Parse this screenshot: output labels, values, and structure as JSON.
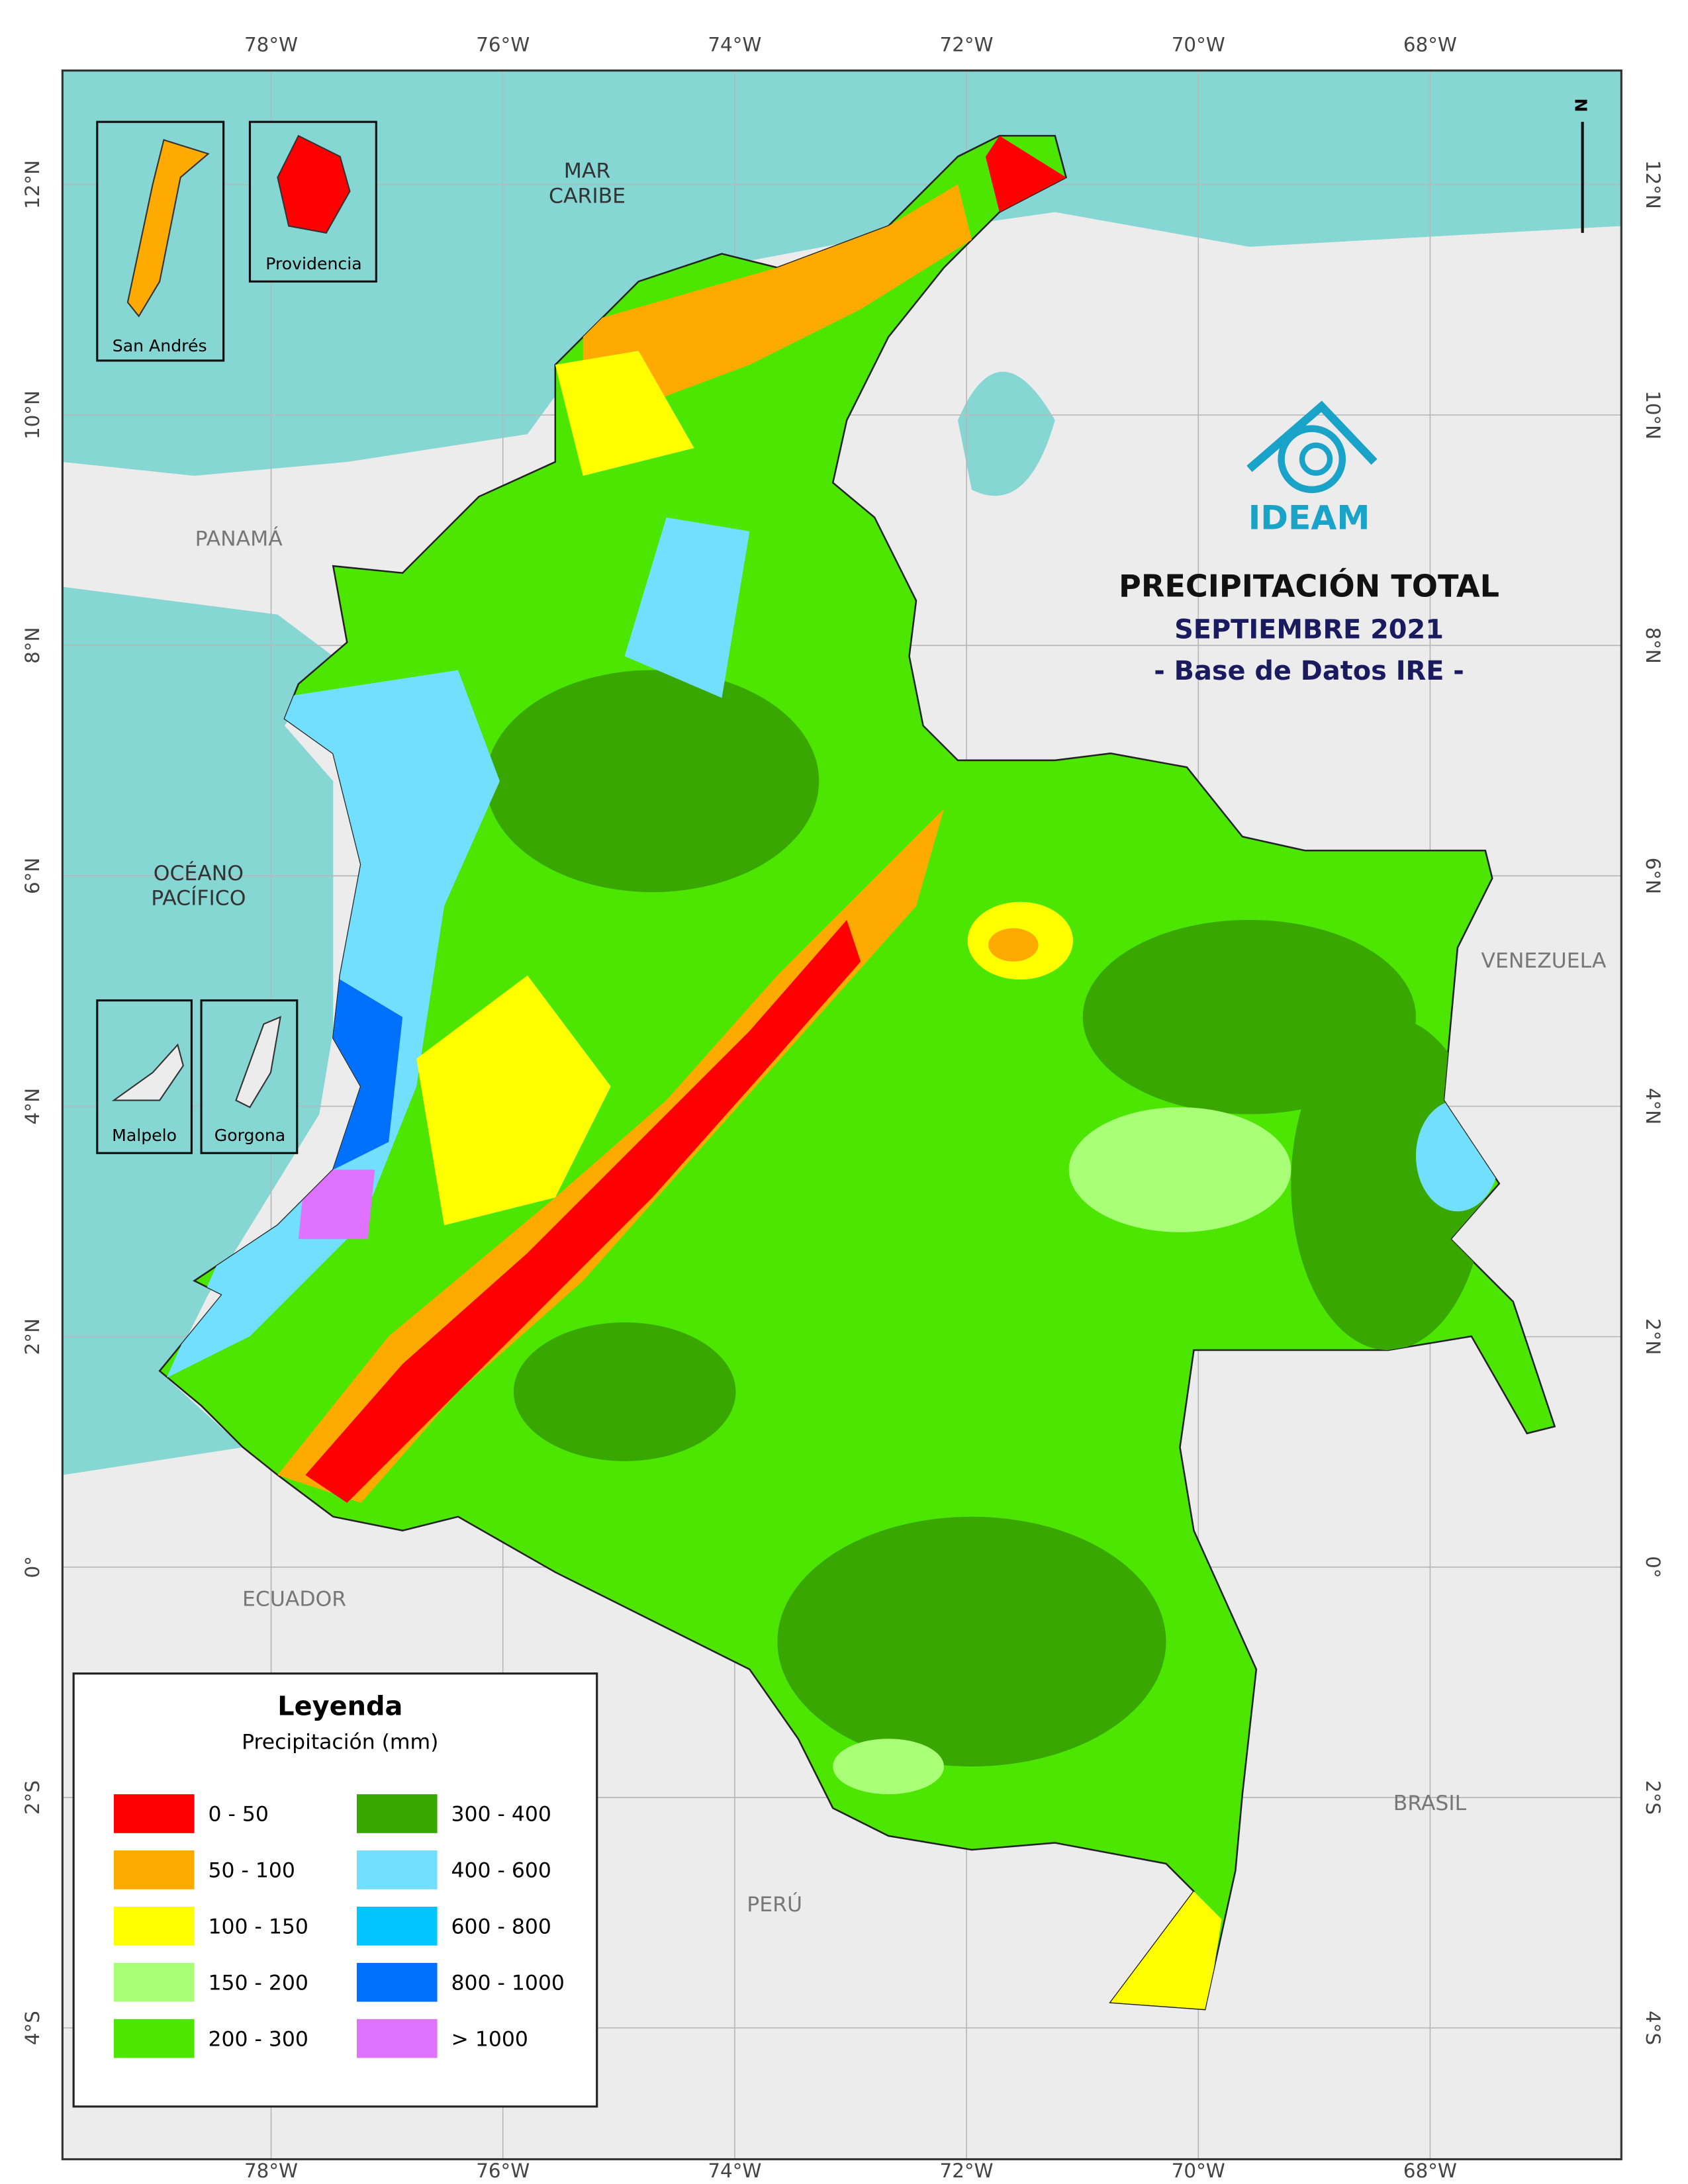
{
  "map": {
    "title": "PRECIPITACIÓN TOTAL",
    "subtitle": "SEPTIEMBRE 2021",
    "source": "- Base de Datos IRE -",
    "logo_text": "IDEAM",
    "north_arrow": "N",
    "lon_range": [
      -79.8,
      -66.35
    ],
    "lat_range": [
      -5.14,
      12.99
    ],
    "lon_ticks": [
      {
        "value": -78,
        "label": "78°W"
      },
      {
        "value": -76,
        "label": "76°W"
      },
      {
        "value": -74,
        "label": "74°W"
      },
      {
        "value": -72,
        "label": "72°W"
      },
      {
        "value": -70,
        "label": "70°W"
      },
      {
        "value": -68,
        "label": "68°W"
      }
    ],
    "lat_ticks": [
      {
        "value": 12,
        "label": "12°N"
      },
      {
        "value": 10,
        "label": "10°N"
      },
      {
        "value": 8,
        "label": "8°N"
      },
      {
        "value": 6,
        "label": "6°N"
      },
      {
        "value": 4,
        "label": "4°N"
      },
      {
        "value": 2,
        "label": "2°N"
      },
      {
        "value": 0,
        "label": "0°"
      },
      {
        "value": -2,
        "label": "2°S"
      },
      {
        "value": -4,
        "label": "4°S"
      }
    ],
    "place_labels": [
      {
        "lines": [
          "MAR",
          "CARIBE"
        ]
      },
      {
        "lines": [
          "PANAMÁ"
        ]
      },
      {
        "lines": [
          "OCÉANO",
          "PACÍFICO"
        ]
      },
      {
        "lines": [
          "VENEZUELA"
        ]
      },
      {
        "lines": [
          "ECUADOR"
        ]
      },
      {
        "lines": [
          "BRASIL"
        ]
      },
      {
        "lines": [
          "PERÚ"
        ]
      }
    ],
    "insets": [
      "San Andrés",
      "Providencia",
      "Malpelo",
      "Gorgona"
    ],
    "legend": {
      "title": "Leyenda",
      "subtitle": "Precipitación (mm)",
      "items": [
        {
          "label": "0 - 50",
          "color": "#ff0000"
        },
        {
          "label": "50 - 100",
          "color": "#ffaa00"
        },
        {
          "label": "100 - 150",
          "color": "#ffff00"
        },
        {
          "label": "150 - 200",
          "color": "#aaff78"
        },
        {
          "label": "200 - 300",
          "color": "#4ce600"
        },
        {
          "label": "300 - 400",
          "color": "#38a800"
        },
        {
          "label": "400 - 600",
          "color": "#73dfff"
        },
        {
          "label": "600 - 800",
          "color": "#00c5ff"
        },
        {
          "label": "800 - 1000",
          "color": "#0070ff"
        },
        {
          "label": "> 1000",
          "color": "#df73ff"
        }
      ]
    }
  }
}
